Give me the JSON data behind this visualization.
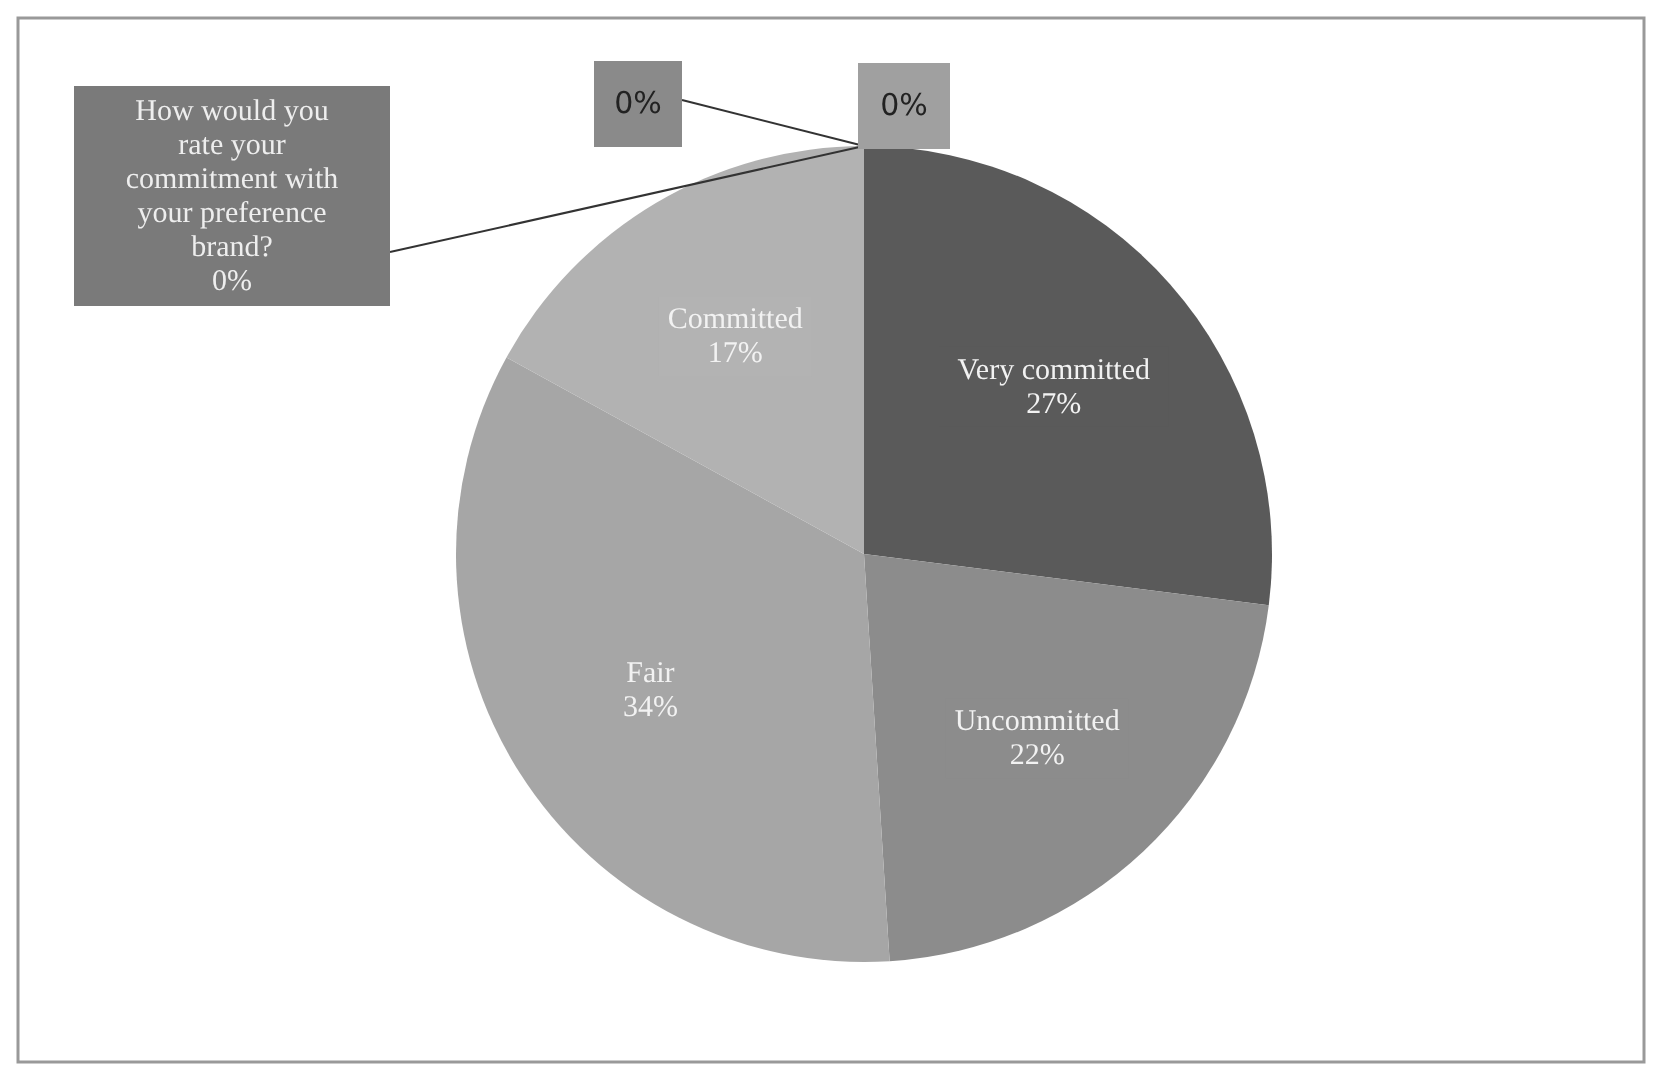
{
  "chart_data": {
    "type": "pie",
    "categories": [
      "How would you rate your commitment with your preference brand?",
      null,
      null,
      "Very committed",
      "Uncommitted",
      "Fair",
      "Committed"
    ],
    "values": [
      0,
      0,
      0,
      27,
      22,
      34,
      17
    ],
    "colors": [
      "#7a7a7a",
      "#8a8a8a",
      "#a0a0a0",
      "#5a5a5a",
      "#8c8c8c",
      "#a6a6a6",
      "#b2b2b2"
    ],
    "value_labels": [
      "0%",
      "0%",
      "0%",
      "27%",
      "22%",
      "34%",
      "17%"
    ]
  }
}
